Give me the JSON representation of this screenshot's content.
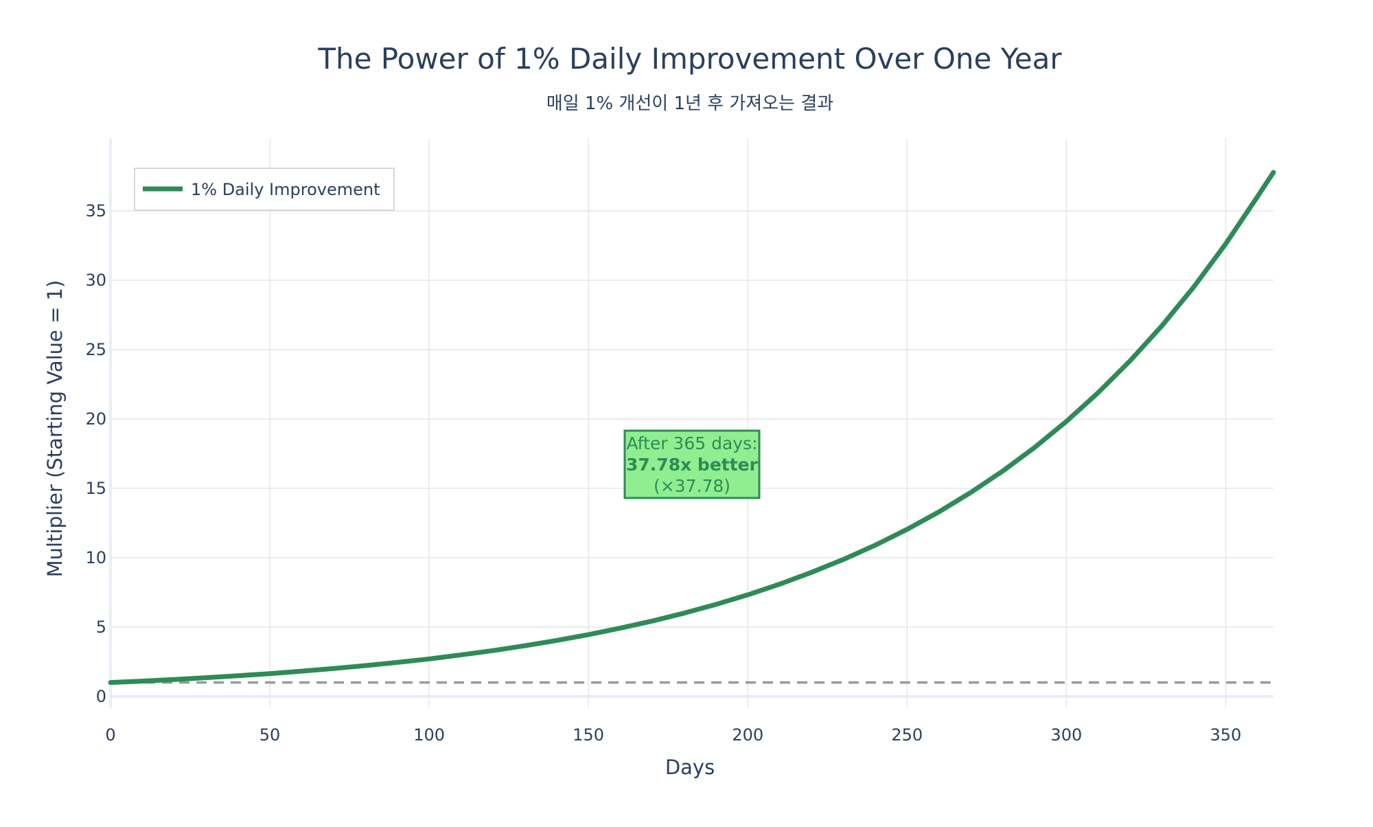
{
  "chart_data": {
    "type": "line",
    "title": "The Power of 1% Daily Improvement Over One Year",
    "subtitle": "매일 1% 개선이 1년 후 가져오는 결과",
    "xlabel": "Days",
    "ylabel": "Multiplier (Starting Value = 1)",
    "xlim": [
      0,
      365
    ],
    "ylim": [
      -0.8,
      40.2
    ],
    "x_ticks": [
      0,
      50,
      100,
      150,
      200,
      250,
      300,
      350
    ],
    "y_ticks": [
      0,
      5,
      10,
      15,
      20,
      25,
      30,
      35
    ],
    "grid": true,
    "legend_position": "top-left",
    "series": [
      {
        "name": "1% Daily Improvement",
        "color": "#2e8b57",
        "growth_rate": 0.01,
        "x": [
          0,
          10,
          20,
          30,
          40,
          50,
          60,
          70,
          80,
          90,
          100,
          110,
          120,
          130,
          140,
          150,
          160,
          170,
          180,
          190,
          200,
          210,
          220,
          230,
          240,
          250,
          260,
          270,
          280,
          290,
          300,
          310,
          320,
          330,
          340,
          350,
          360,
          365
        ],
        "values": [
          1.0,
          1.1,
          1.22,
          1.35,
          1.49,
          1.64,
          1.82,
          2.01,
          2.22,
          2.45,
          2.7,
          2.99,
          3.3,
          3.65,
          4.03,
          4.45,
          4.92,
          5.43,
          6.0,
          6.63,
          7.32,
          8.09,
          8.94,
          9.87,
          10.9,
          12.04,
          13.3,
          14.7,
          16.24,
          17.94,
          19.82,
          21.9,
          24.19,
          26.72,
          29.52,
          32.62,
          36.03,
          37.78
        ]
      }
    ],
    "baseline": {
      "value": 1,
      "color": "#999999",
      "style": "dashed"
    },
    "annotation": {
      "line1": "After 365 days:",
      "line2": "37.78x better",
      "line3": "(×37.78)",
      "x": 183,
      "y": 16.8,
      "bg_color": "#90ee90",
      "border_color": "#2e8b57"
    }
  }
}
